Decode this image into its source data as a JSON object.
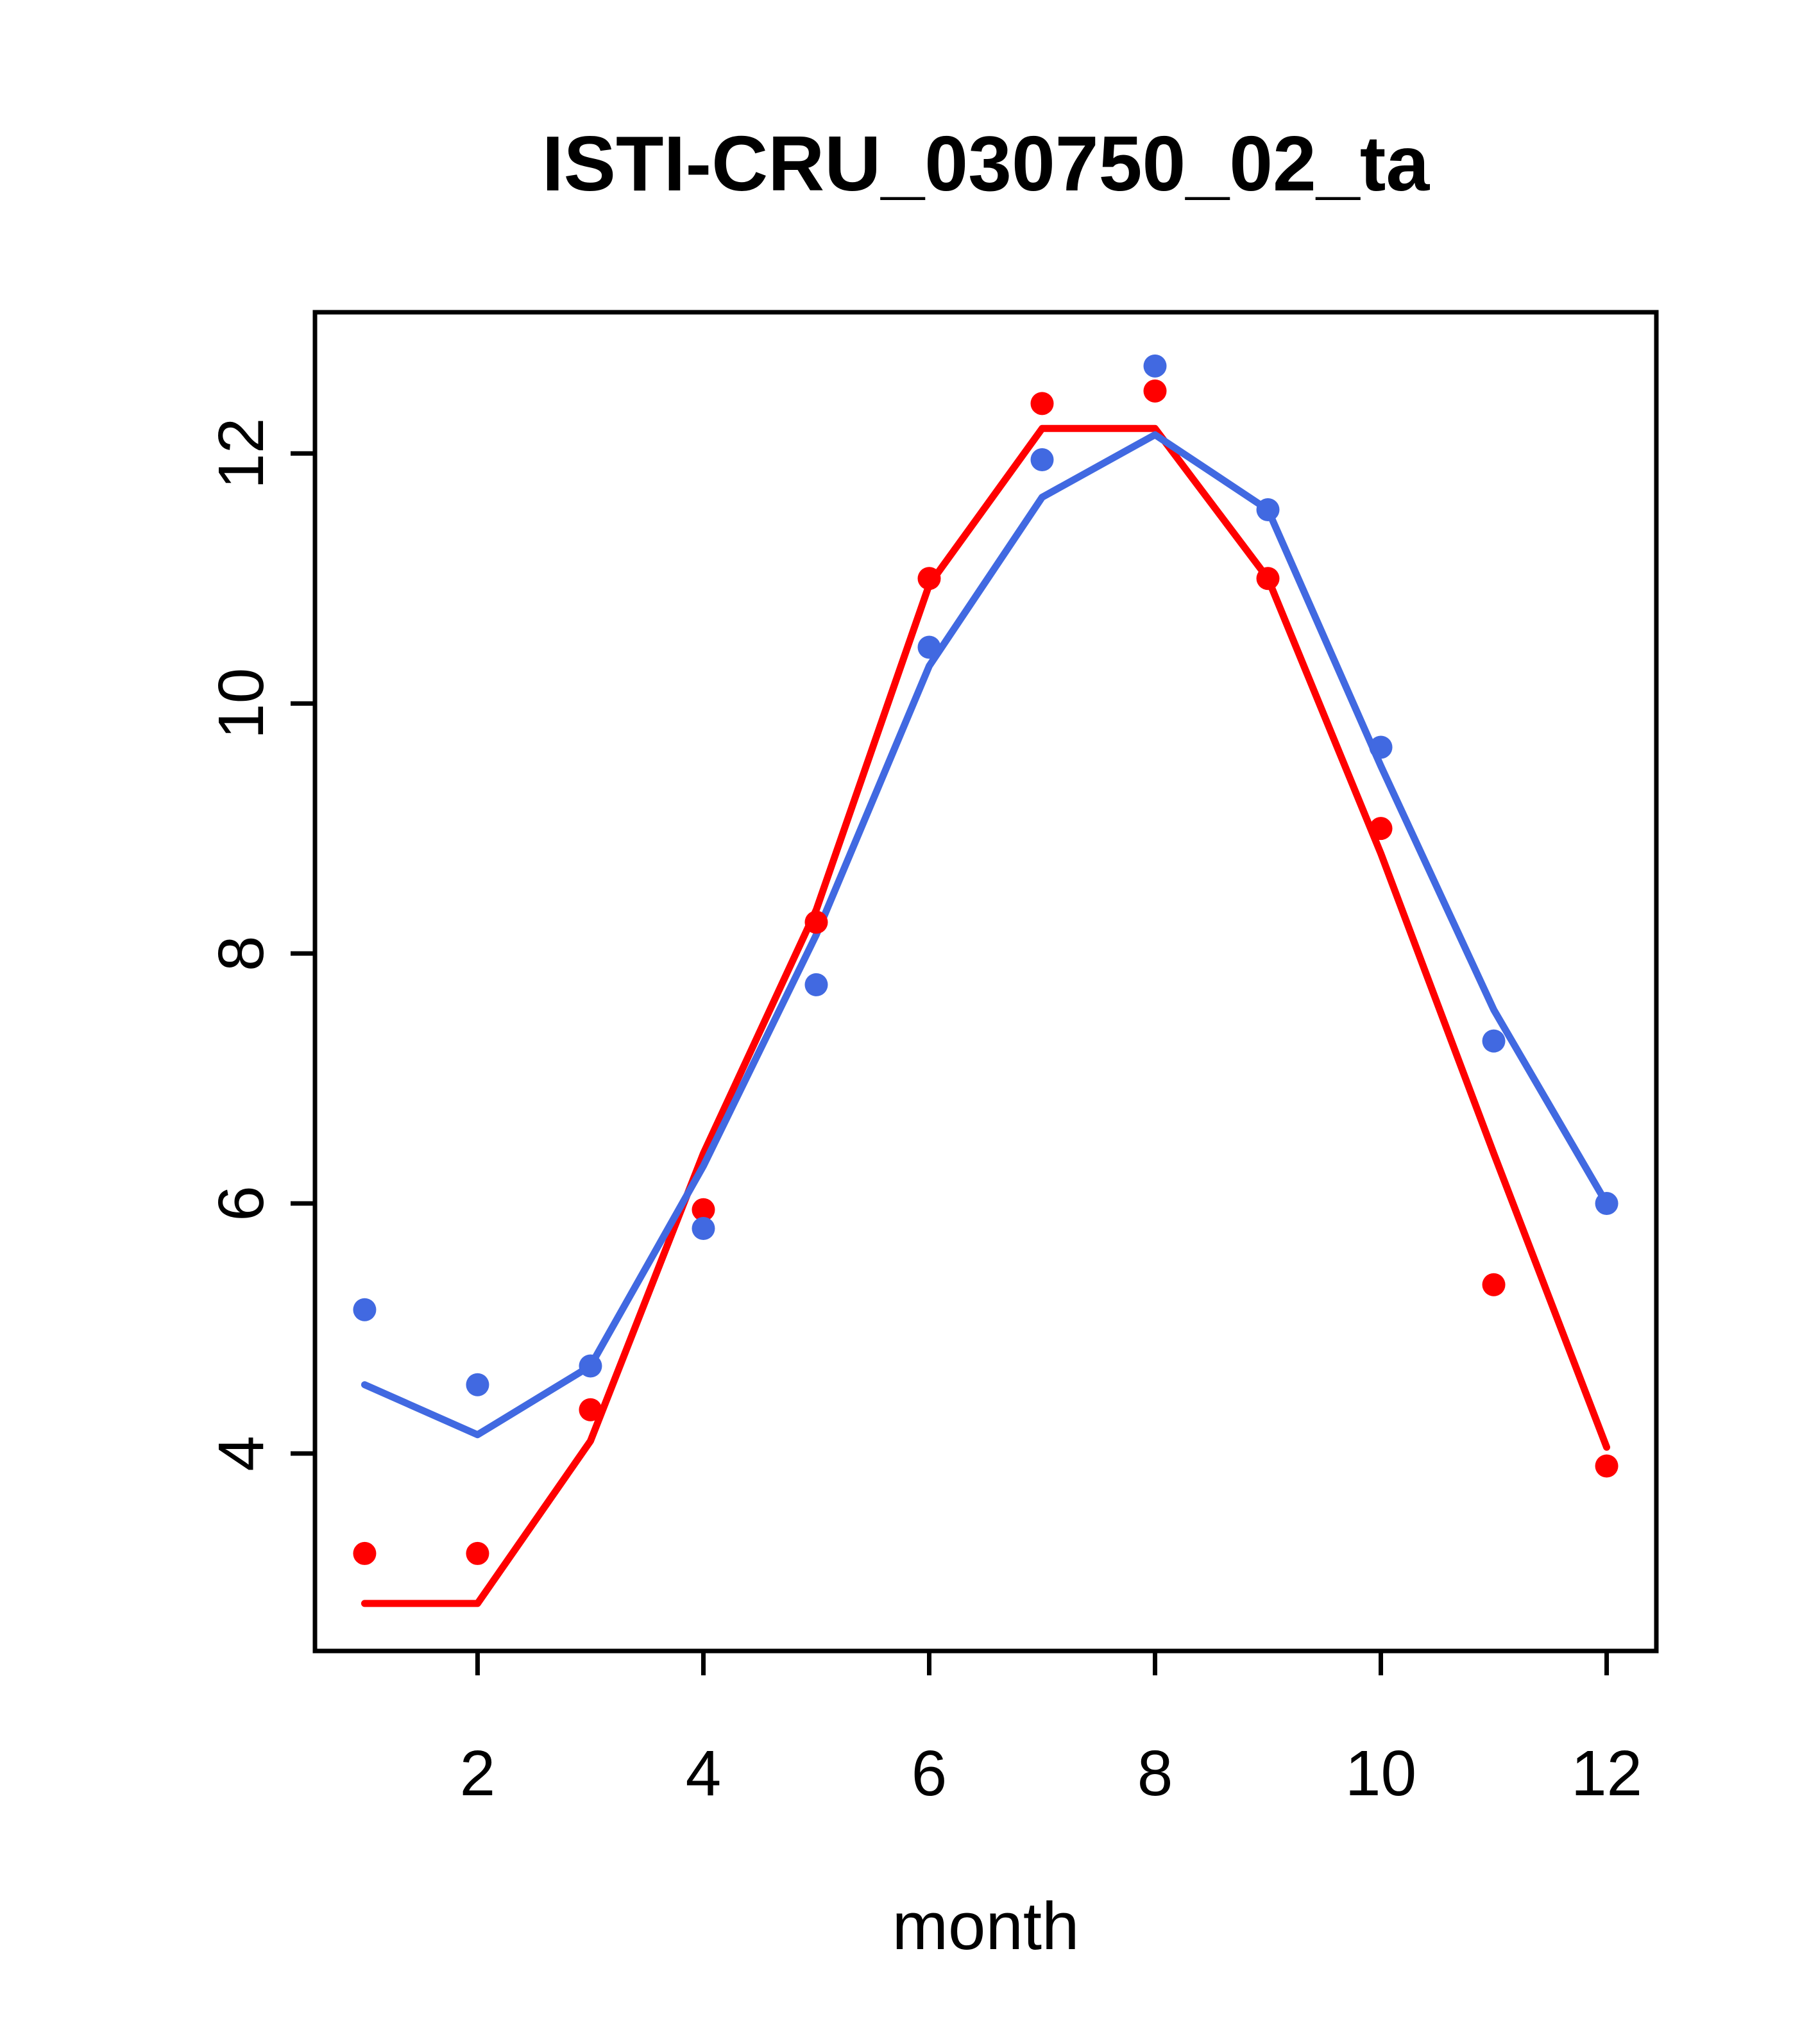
{
  "chart_data": {
    "type": "line",
    "title": "ISTI-CRU_030750_02_ta",
    "xlabel": "month",
    "ylabel": "",
    "x": [
      1,
      2,
      3,
      4,
      5,
      6,
      7,
      8,
      9,
      10,
      11,
      12
    ],
    "xticks": [
      2,
      4,
      6,
      8,
      10,
      12
    ],
    "yticks": [
      4,
      6,
      8,
      10,
      12
    ],
    "xlim": [
      0.56,
      12.44
    ],
    "ylim": [
      2.42,
      13.13
    ],
    "grid": false,
    "legend": "none",
    "colors": {
      "red": "#ff0000",
      "blue": "#4169e1",
      "axis": "#000000",
      "background": "#ffffff"
    },
    "series": [
      {
        "name": "red-line",
        "kind": "line",
        "color": "#ff0000",
        "values": [
          2.8,
          2.8,
          4.1,
          6.4,
          8.35,
          10.95,
          12.2,
          12.2,
          11.0,
          8.8,
          6.4,
          4.05
        ]
      },
      {
        "name": "blue-line",
        "kind": "line",
        "color": "#4169e1",
        "values": [
          4.55,
          4.15,
          4.7,
          6.3,
          8.15,
          10.3,
          11.65,
          12.15,
          11.55,
          9.5,
          7.55,
          6.0
        ]
      },
      {
        "name": "red-points",
        "kind": "scatter",
        "color": "#ff0000",
        "values": [
          3.2,
          3.2,
          4.35,
          5.95,
          8.25,
          11.0,
          12.4,
          12.5,
          11.0,
          9.0,
          5.35,
          3.9
        ]
      },
      {
        "name": "blue-points",
        "kind": "scatter",
        "color": "#4169e1",
        "values": [
          5.15,
          4.55,
          4.7,
          5.8,
          7.75,
          10.45,
          11.95,
          12.7,
          11.55,
          9.65,
          7.3,
          6.0
        ]
      }
    ]
  }
}
